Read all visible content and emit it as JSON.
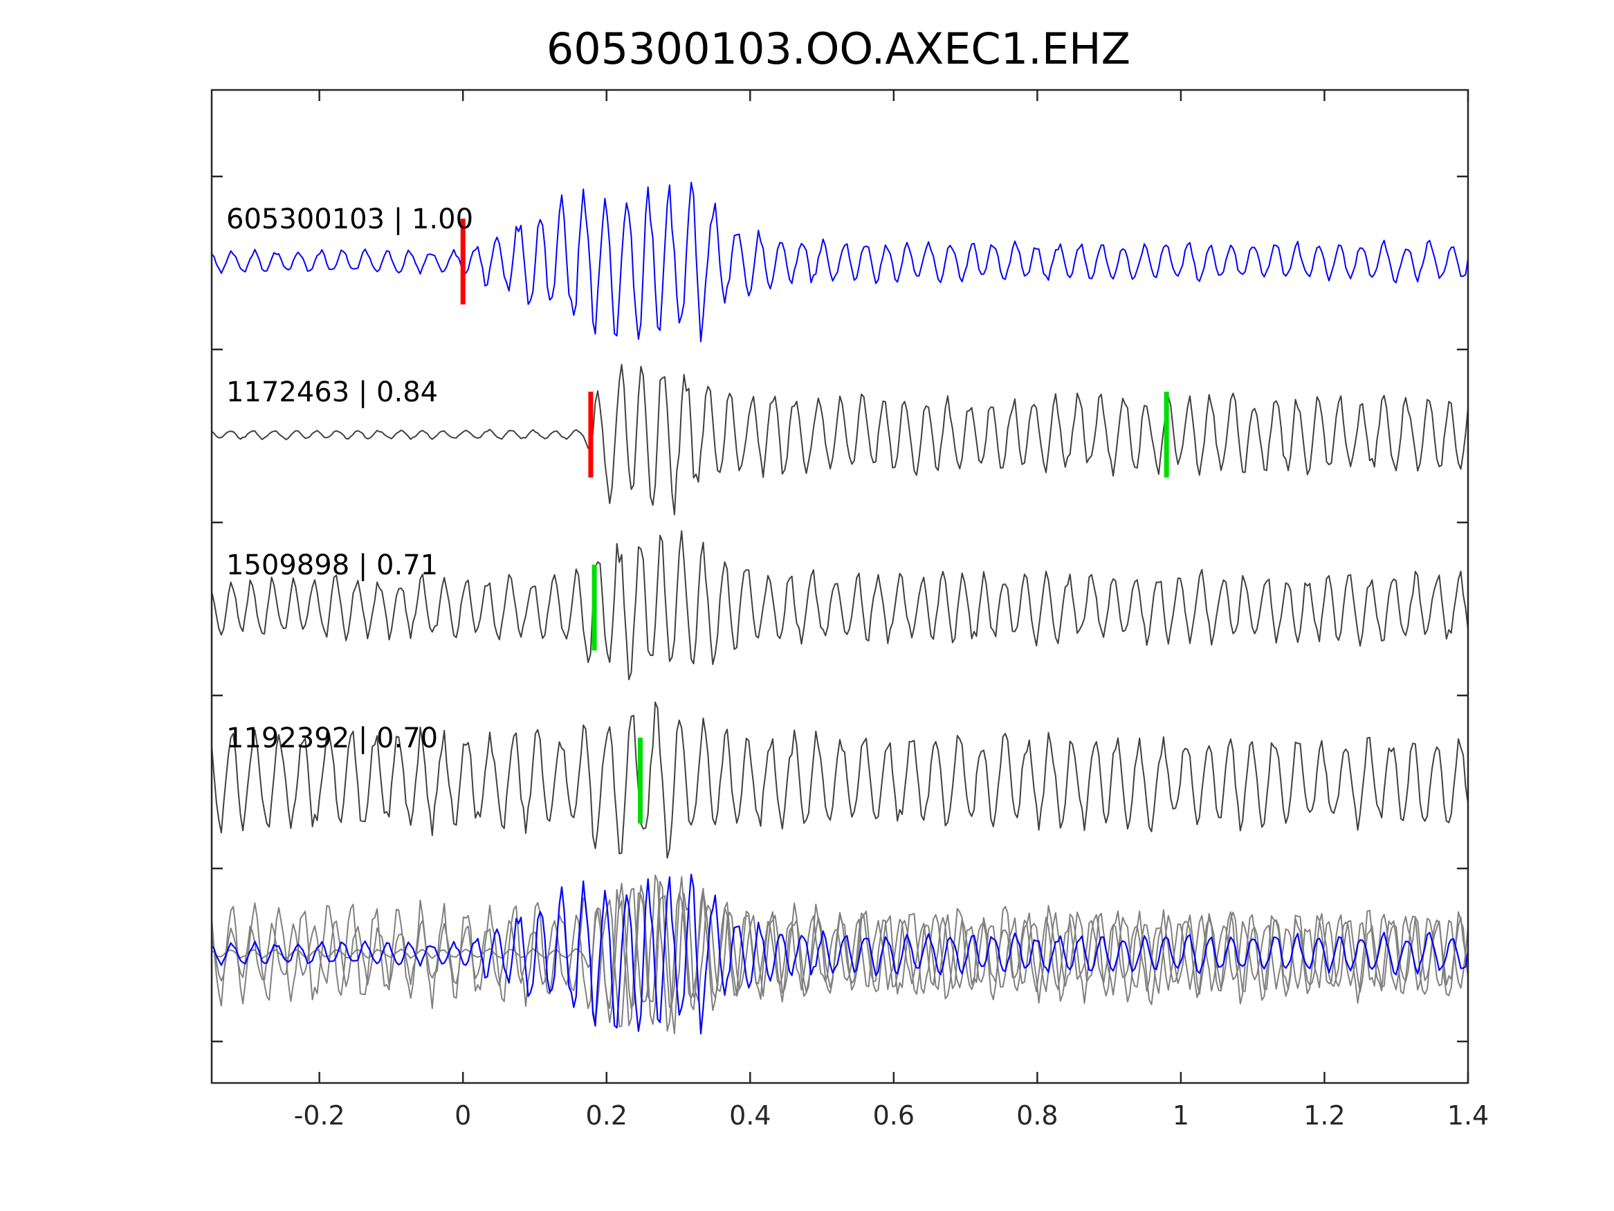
{
  "chart_data": {
    "type": "line",
    "title": "605300103.OO.AXEC1.EHZ",
    "xlabel": "",
    "ylabel": "",
    "xlim": [
      -0.35,
      1.4
    ],
    "x_ticks": [
      -0.2,
      0,
      0.2,
      0.4,
      0.6,
      0.8,
      1,
      1.2,
      1.4
    ],
    "x_tick_labels": [
      "-0.2",
      "0",
      "0.2",
      "0.4",
      "0.6",
      "0.8",
      "1",
      "1.2",
      "1.4"
    ],
    "y_ticks_visible": false,
    "grid": false,
    "traces": [
      {
        "event_id": "605300103",
        "correlation": "1.00",
        "label": "605300103 | 1.00",
        "color": "#0000ff",
        "picks": [
          {
            "time": 0.0,
            "phase": "P",
            "color": "#ff0000"
          }
        ],
        "waveform": {
          "noise_amp": 0.15,
          "onset": 0.0,
          "peak_start": 0.18,
          "peak_end": 0.33,
          "peak_amp": 1.0,
          "coda_amp": 0.25,
          "freq": 33,
          "seed": 11
        }
      },
      {
        "event_id": "1172463",
        "correlation": "0.84",
        "label": "1172463 | 0.84",
        "color": "#404040",
        "picks": [
          {
            "time": 0.178,
            "phase": "P",
            "color": "#ff0000"
          },
          {
            "time": 0.98,
            "phase": "S",
            "color": "#00dd00"
          }
        ],
        "waveform": {
          "noise_amp": 0.06,
          "onset": 0.17,
          "peak_start": 0.2,
          "peak_end": 0.3,
          "peak_amp": 1.0,
          "coda_amp": 0.5,
          "freq": 33,
          "seed": 23
        }
      },
      {
        "event_id": "1509898",
        "correlation": "0.71",
        "label": "1509898 | 0.71",
        "color": "#404040",
        "picks": [
          {
            "time": 0.183,
            "phase": "S",
            "color": "#00dd00"
          }
        ],
        "waveform": {
          "noise_amp": 0.4,
          "onset": 0.15,
          "peak_start": 0.18,
          "peak_end": 0.32,
          "peak_amp": 0.9,
          "coda_amp": 0.45,
          "freq": 33,
          "seed": 37
        }
      },
      {
        "event_id": "1192392",
        "correlation": "0.70",
        "label": "1192392 | 0.70",
        "color": "#404040",
        "picks": [
          {
            "time": 0.247,
            "phase": "S",
            "color": "#00dd00"
          }
        ],
        "waveform": {
          "noise_amp": 0.65,
          "onset": 0.15,
          "peak_start": 0.2,
          "peak_end": 0.3,
          "peak_amp": 0.95,
          "coda_amp": 0.6,
          "freq": 31,
          "seed": 51
        }
      }
    ],
    "overlay": {
      "description_color_reference": "#0000ff",
      "description_color_others": "#808080"
    }
  }
}
